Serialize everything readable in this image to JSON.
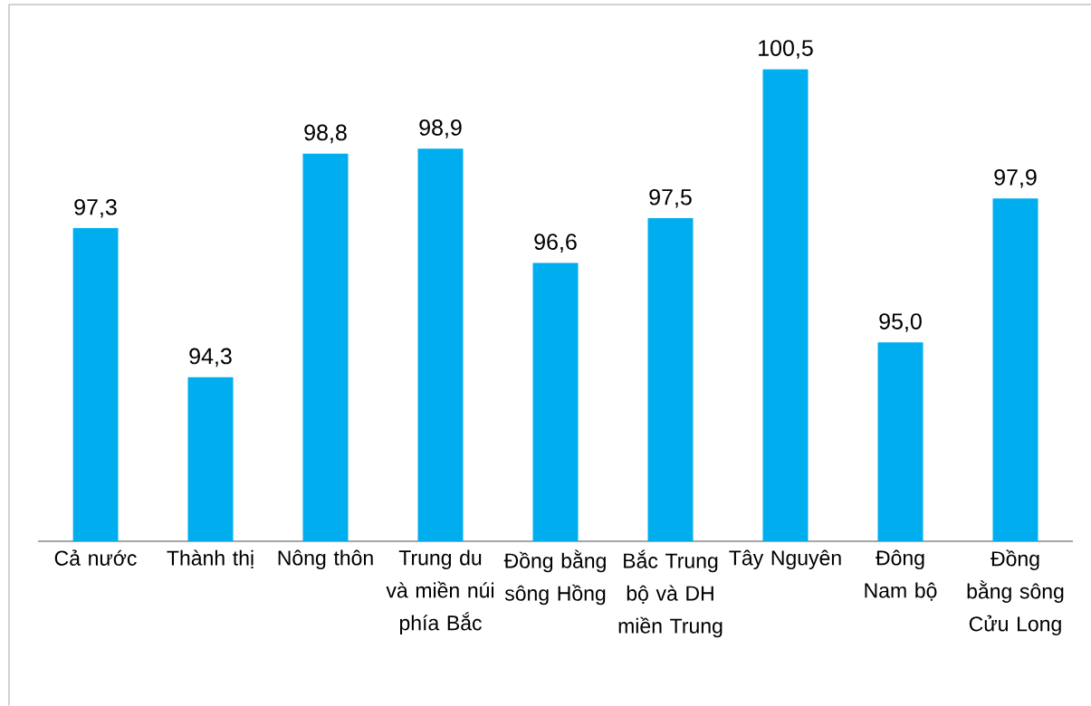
{
  "chart_data": {
    "type": "bar",
    "categories": [
      "Cả nước",
      "Thành thị",
      "Nông thôn",
      "Trung du và miền núi phía Bắc",
      "Đồng bằng sông Hồng",
      "Bắc Trung bộ và DH miền Trung",
      "Tây Nguyên",
      "Đông Nam bộ",
      "Đồng bằng sông Cửu Long"
    ],
    "values": [
      97.3,
      94.3,
      98.8,
      98.9,
      96.6,
      97.5,
      100.5,
      95.0,
      97.9
    ],
    "value_labels": [
      "97,3",
      "94,3",
      "98,8",
      "98,9",
      "96,6",
      "97,5",
      "100,5",
      "95,0",
      "97,9"
    ],
    "color": "#00aeef",
    "ylim": [
      91,
      101.8
    ],
    "tick_labels": "x"
  }
}
